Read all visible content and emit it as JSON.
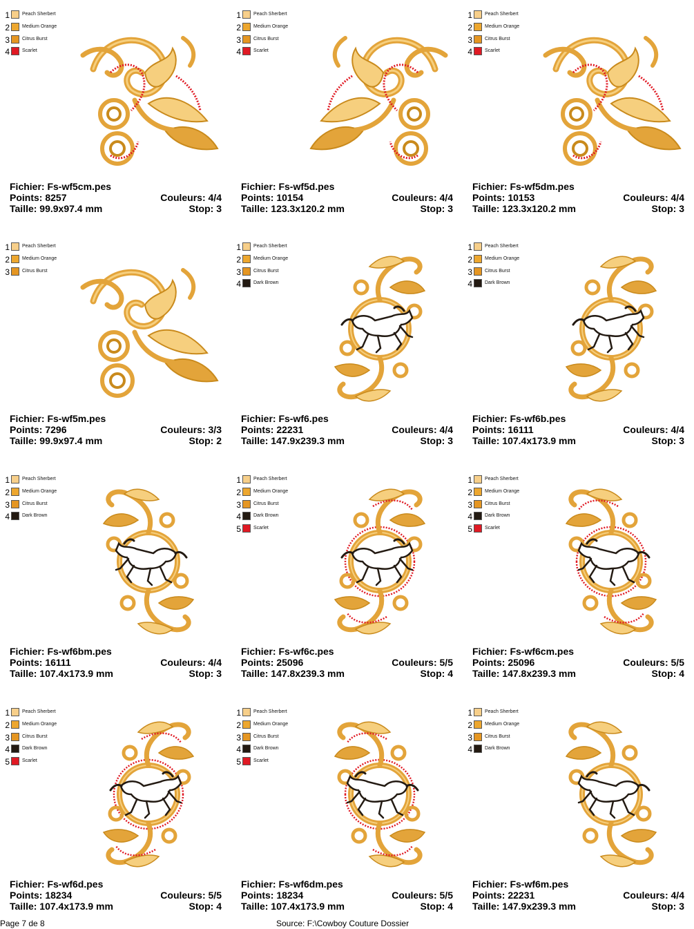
{
  "palette": {
    "Peach Sherbert": "#f7cf8a",
    "Medium Orange": "#eda72f",
    "Citrus Burst": "#e59622",
    "Scarlet": "#e01a24",
    "Dark Brown": "#231a12"
  },
  "designs": [
    {
      "file": "Fichier: Fs-wf5cm.pes",
      "points": "Points: 8257",
      "size": "Taille: 99.9x97.4 mm",
      "colors": "Couleurs: 4/4",
      "stops": "Stop: 3",
      "thread_list": [
        {
          "num": "1",
          "name": "Peach Sherbert"
        },
        {
          "num": "2",
          "name": "Medium Orange"
        },
        {
          "num": "3",
          "name": "Citrus Burst"
        },
        {
          "num": "4",
          "name": "Scarlet"
        }
      ],
      "art": {
        "kind": "corner",
        "mirror": false,
        "red": true,
        "horse": false
      }
    },
    {
      "file": "Fichier: Fs-wf5d.pes",
      "points": "Points: 10154",
      "size": "Taille: 123.3x120.2 mm",
      "colors": "Couleurs: 4/4",
      "stops": "Stop: 3",
      "thread_list": [
        {
          "num": "1",
          "name": "Peach Sherbert"
        },
        {
          "num": "2",
          "name": "Medium Orange"
        },
        {
          "num": "3",
          "name": "Citrus Burst"
        },
        {
          "num": "4",
          "name": "Scarlet"
        }
      ],
      "art": {
        "kind": "corner",
        "mirror": true,
        "red": true,
        "horse": false
      }
    },
    {
      "file": "Fichier: Fs-wf5dm.pes",
      "points": "Points: 10153",
      "size": "Taille: 123.3x120.2 mm",
      "colors": "Couleurs: 4/4",
      "stops": "Stop: 3",
      "thread_list": [
        {
          "num": "1",
          "name": "Peach Sherbert"
        },
        {
          "num": "2",
          "name": "Medium Orange"
        },
        {
          "num": "3",
          "name": "Citrus Burst"
        },
        {
          "num": "4",
          "name": "Scarlet"
        }
      ],
      "art": {
        "kind": "corner",
        "mirror": false,
        "red": true,
        "horse": false
      }
    },
    {
      "file": "Fichier: Fs-wf5m.pes",
      "points": "Points: 7296",
      "size": "Taille: 99.9x97.4 mm",
      "colors": "Couleurs: 3/3",
      "stops": "Stop: 2",
      "thread_list": [
        {
          "num": "1",
          "name": "Peach Sherbert"
        },
        {
          "num": "2",
          "name": "Medium Orange"
        },
        {
          "num": "3",
          "name": "Citrus Burst"
        }
      ],
      "art": {
        "kind": "corner",
        "mirror": false,
        "red": false,
        "horse": false
      }
    },
    {
      "file": "Fichier: Fs-wf6.pes",
      "points": "Points: 22231",
      "size": "Taille: 147.9x239.3 mm",
      "colors": "Couleurs: 4/4",
      "stops": "Stop: 3",
      "thread_list": [
        {
          "num": "1",
          "name": "Peach Sherbert"
        },
        {
          "num": "2",
          "name": "Medium Orange"
        },
        {
          "num": "3",
          "name": "Citrus Burst"
        },
        {
          "num": "4",
          "name": "Dark Brown"
        }
      ],
      "art": {
        "kind": "horse",
        "mirror": false,
        "red": false,
        "horse": true
      }
    },
    {
      "file": "Fichier: Fs-wf6b.pes",
      "points": "Points: 16111",
      "size": "Taille: 107.4x173.9 mm",
      "colors": "Couleurs: 4/4",
      "stops": "Stop: 3",
      "thread_list": [
        {
          "num": "1",
          "name": "Peach Sherbert"
        },
        {
          "num": "2",
          "name": "Medium Orange"
        },
        {
          "num": "3",
          "name": "Citrus Burst"
        },
        {
          "num": "4",
          "name": "Dark Brown"
        }
      ],
      "art": {
        "kind": "horse",
        "mirror": false,
        "red": false,
        "horse": true
      }
    },
    {
      "file": "Fichier: Fs-wf6bm.pes",
      "points": "Points: 16111",
      "size": "Taille: 107.4x173.9 mm",
      "colors": "Couleurs: 4/4",
      "stops": "Stop: 3",
      "thread_list": [
        {
          "num": "1",
          "name": "Peach Sherbert"
        },
        {
          "num": "2",
          "name": "Medium Orange"
        },
        {
          "num": "3",
          "name": "Citrus Burst"
        },
        {
          "num": "4",
          "name": "Dark Brown"
        }
      ],
      "art": {
        "kind": "horse",
        "mirror": true,
        "red": false,
        "horse": true
      }
    },
    {
      "file": "Fichier: Fs-wf6c.pes",
      "points": "Points: 25096",
      "size": "Taille: 147.8x239.3 mm",
      "colors": "Couleurs: 5/5",
      "stops": "Stop: 4",
      "thread_list": [
        {
          "num": "1",
          "name": "Peach Sherbert"
        },
        {
          "num": "2",
          "name": "Medium Orange"
        },
        {
          "num": "3",
          "name": "Citrus Burst"
        },
        {
          "num": "4",
          "name": "Dark Brown"
        },
        {
          "num": "5",
          "name": "Scarlet"
        }
      ],
      "art": {
        "kind": "horse",
        "mirror": false,
        "red": true,
        "horse": true
      }
    },
    {
      "file": "Fichier: Fs-wf6cm.pes",
      "points": "Points: 25096",
      "size": "Taille: 147.8x239.3 mm",
      "colors": "Couleurs: 5/5",
      "stops": "Stop: 4",
      "thread_list": [
        {
          "num": "1",
          "name": "Peach Sherbert"
        },
        {
          "num": "2",
          "name": "Medium Orange"
        },
        {
          "num": "3",
          "name": "Citrus Burst"
        },
        {
          "num": "4",
          "name": "Dark Brown"
        },
        {
          "num": "5",
          "name": "Scarlet"
        }
      ],
      "art": {
        "kind": "horse",
        "mirror": true,
        "red": true,
        "horse": true
      }
    },
    {
      "file": "Fichier: Fs-wf6d.pes",
      "points": "Points: 18234",
      "size": "Taille: 107.4x173.9 mm",
      "colors": "Couleurs: 5/5",
      "stops": "Stop: 4",
      "thread_list": [
        {
          "num": "1",
          "name": "Peach Sherbert"
        },
        {
          "num": "2",
          "name": "Medium Orange"
        },
        {
          "num": "3",
          "name": "Citrus Burst"
        },
        {
          "num": "4",
          "name": "Dark Brown"
        },
        {
          "num": "5",
          "name": "Scarlet"
        }
      ],
      "art": {
        "kind": "horse",
        "mirror": false,
        "red": true,
        "horse": true
      }
    },
    {
      "file": "Fichier: Fs-wf6dm.pes",
      "points": "Points: 18234",
      "size": "Taille: 107.4x173.9 mm",
      "colors": "Couleurs: 5/5",
      "stops": "Stop: 4",
      "thread_list": [
        {
          "num": "1",
          "name": "Peach Sherbert"
        },
        {
          "num": "2",
          "name": "Medium Orange"
        },
        {
          "num": "3",
          "name": "Citrus Burst"
        },
        {
          "num": "4",
          "name": "Dark Brown"
        },
        {
          "num": "5",
          "name": "Scarlet"
        }
      ],
      "art": {
        "kind": "horse",
        "mirror": true,
        "red": true,
        "horse": true
      }
    },
    {
      "file": "Fichier: Fs-wf6m.pes",
      "points": "Points: 22231",
      "size": "Taille: 147.9x239.3 mm",
      "colors": "Couleurs: 4/4",
      "stops": "Stop: 3",
      "thread_list": [
        {
          "num": "1",
          "name": "Peach Sherbert"
        },
        {
          "num": "2",
          "name": "Medium Orange"
        },
        {
          "num": "3",
          "name": "Citrus Burst"
        },
        {
          "num": "4",
          "name": "Dark Brown"
        }
      ],
      "art": {
        "kind": "horse",
        "mirror": true,
        "red": false,
        "horse": true
      }
    }
  ],
  "footer": {
    "page": "Page 7 de 8",
    "source": "Source: F:\\Cowboy Couture Dossier"
  }
}
